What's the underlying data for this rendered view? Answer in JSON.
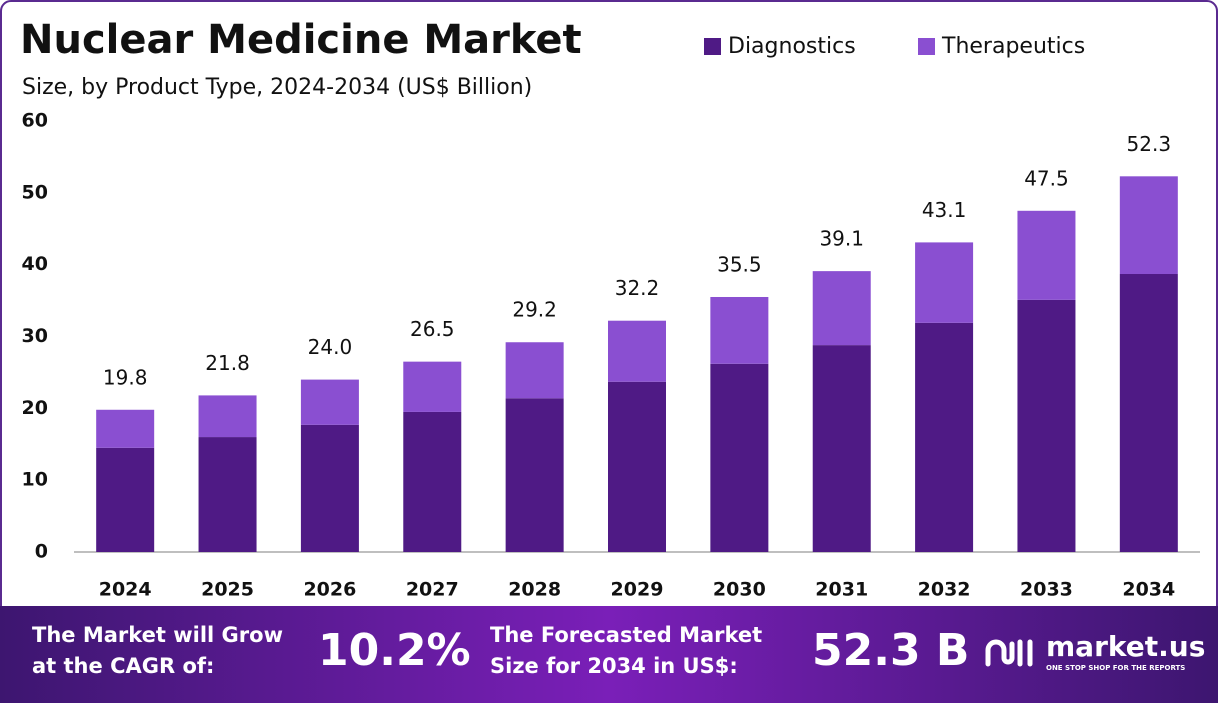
{
  "chart_data": {
    "type": "stacked_bar",
    "title": "Nuclear Medicine Market",
    "subtitle": "Size, by Product Type, 2024-2034 (US$ Billion)",
    "categories": [
      "2024",
      "2025",
      "2026",
      "2027",
      "2028",
      "2029",
      "2030",
      "2031",
      "2032",
      "2033",
      "2034"
    ],
    "series": [
      {
        "name": "Diagnostics",
        "color": "#4f1a85",
        "values": [
          14.5,
          16.0,
          17.7,
          19.5,
          21.4,
          23.7,
          26.2,
          28.8,
          31.9,
          35.1,
          38.7
        ]
      },
      {
        "name": "Therapeutics",
        "color": "#8a4fd1",
        "values": [
          5.3,
          5.8,
          6.3,
          7.0,
          7.8,
          8.5,
          9.3,
          10.3,
          11.2,
          12.4,
          13.6
        ]
      }
    ],
    "totals": [
      19.8,
      21.8,
      24.0,
      26.5,
      29.2,
      32.2,
      35.5,
      39.1,
      43.1,
      47.5,
      52.3
    ],
    "value_labels": [
      "19.8",
      "21.8",
      "24.0",
      "26.5",
      "29.2",
      "32.2",
      "35.5",
      "39.1",
      "43.1",
      "47.5",
      "52.3"
    ],
    "ylim": [
      0,
      60
    ],
    "yticks": [
      0,
      10,
      20,
      30,
      40,
      50,
      60
    ],
    "grid": false,
    "legend": "top-right"
  },
  "footer": {
    "cagr_text": [
      "The Market will Grow",
      "at the CAGR of:"
    ],
    "cagr_value": "10.2%",
    "forecast_text": [
      "The Forecasted Market",
      "Size for 2034 in US$:"
    ],
    "forecast_value": "52.3 B",
    "brand": "market.us",
    "tagline": "ONE STOP SHOP FOR THE REPORTS"
  }
}
